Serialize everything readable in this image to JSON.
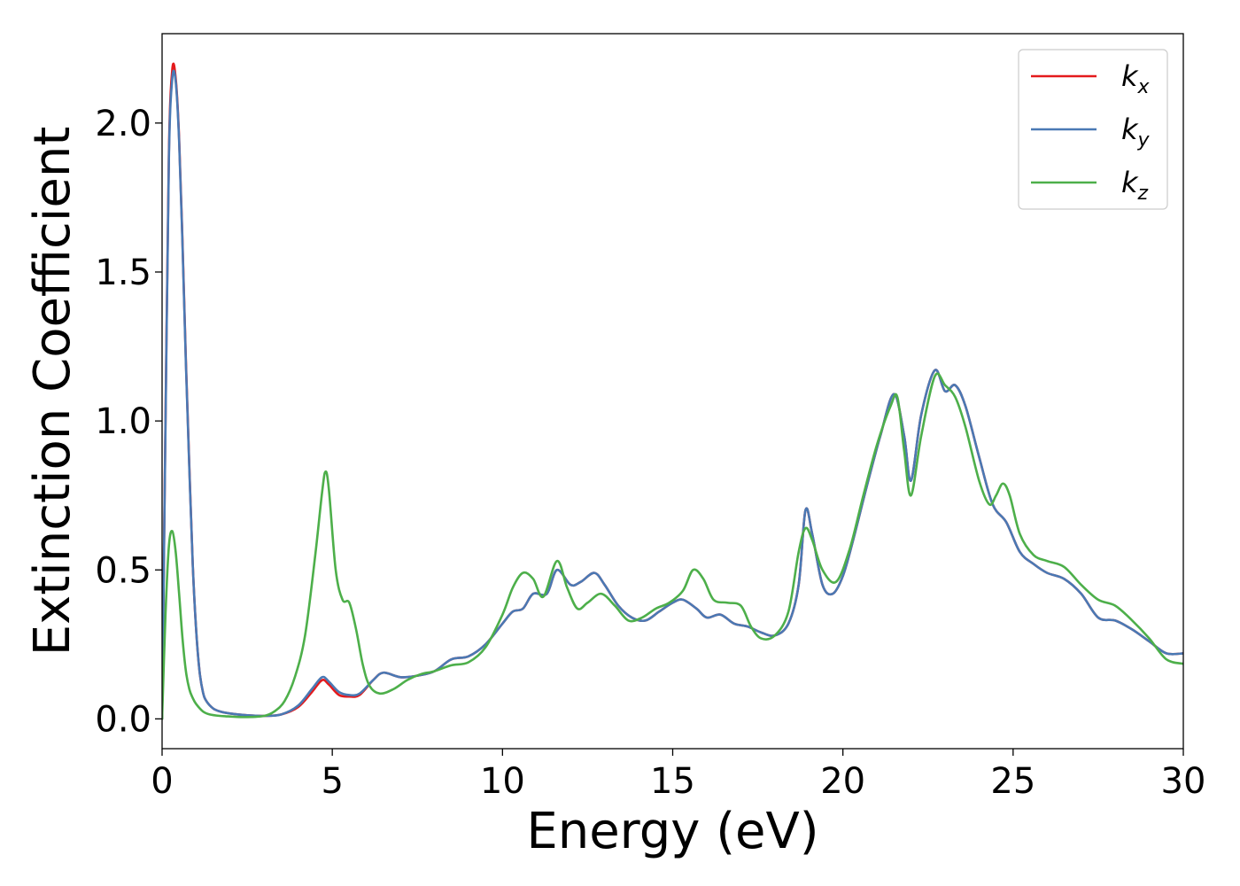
{
  "chart_data": {
    "type": "line",
    "title": "",
    "xlabel": "Energy (eV)",
    "ylabel": "Extinction Coefficient",
    "xlim": [
      0,
      30
    ],
    "ylim": [
      -0.1,
      2.3
    ],
    "xticks": [
      0,
      5,
      10,
      15,
      20,
      25,
      30
    ],
    "xtick_labels": [
      "0",
      "5",
      "10",
      "15",
      "20",
      "25",
      "30"
    ],
    "yticks": [
      0.0,
      0.5,
      1.0,
      1.5,
      2.0
    ],
    "ytick_labels": [
      "0.0",
      "0.5",
      "1.0",
      "1.5",
      "2.0"
    ],
    "grid": false,
    "legend_position": "top-right",
    "series": [
      {
        "name": "k",
        "subscript": "x",
        "color": "#e41a1c",
        "x": [
          0,
          0.1,
          0.2,
          0.3,
          0.4,
          0.5,
          0.6,
          0.7,
          0.8,
          0.9,
          1.0,
          1.1,
          1.2,
          1.3,
          1.5,
          1.7,
          2.0,
          2.5,
          3.0,
          3.5,
          4.0,
          4.4,
          4.7,
          4.9,
          5.2,
          5.5,
          5.8,
          6.2,
          6.5,
          7.0,
          7.5,
          8.0,
          8.5,
          9.0,
          9.5,
          10.0,
          10.3,
          10.6,
          10.9,
          11.3,
          11.6,
          12.0,
          12.3,
          12.7,
          13.0,
          13.4,
          13.8,
          14.2,
          14.6,
          15.0,
          15.3,
          15.7,
          16.0,
          16.4,
          16.8,
          17.2,
          17.6,
          18.0,
          18.4,
          18.7,
          18.9,
          19.1,
          19.4,
          19.7,
          20.0,
          20.3,
          20.7,
          21.1,
          21.5,
          21.8,
          22.0,
          22.3,
          22.7,
          23.0,
          23.3,
          23.6,
          24.0,
          24.4,
          24.8,
          25.2,
          25.6,
          26.0,
          26.5,
          27.0,
          27.5,
          28.0,
          28.5,
          29.0,
          29.5,
          30.0
        ],
        "y": [
          0.0,
          1.0,
          1.9,
          2.18,
          2.15,
          1.95,
          1.6,
          1.2,
          0.85,
          0.52,
          0.3,
          0.16,
          0.09,
          0.06,
          0.035,
          0.025,
          0.018,
          0.012,
          0.01,
          0.015,
          0.04,
          0.09,
          0.13,
          0.115,
          0.08,
          0.075,
          0.08,
          0.13,
          0.155,
          0.14,
          0.145,
          0.16,
          0.2,
          0.21,
          0.25,
          0.32,
          0.36,
          0.37,
          0.42,
          0.42,
          0.5,
          0.45,
          0.46,
          0.49,
          0.45,
          0.38,
          0.34,
          0.33,
          0.36,
          0.39,
          0.4,
          0.37,
          0.34,
          0.35,
          0.32,
          0.31,
          0.29,
          0.28,
          0.32,
          0.45,
          0.7,
          0.62,
          0.45,
          0.42,
          0.48,
          0.6,
          0.78,
          0.95,
          1.09,
          0.95,
          0.8,
          1.02,
          1.17,
          1.1,
          1.12,
          1.05,
          0.88,
          0.72,
          0.66,
          0.56,
          0.52,
          0.49,
          0.47,
          0.42,
          0.34,
          0.33,
          0.3,
          0.26,
          0.22,
          0.22
        ]
      },
      {
        "name": "k",
        "subscript": "y",
        "color": "#4a79b4",
        "x": [
          0,
          0.1,
          0.2,
          0.3,
          0.4,
          0.5,
          0.6,
          0.7,
          0.8,
          0.9,
          1.0,
          1.1,
          1.2,
          1.3,
          1.5,
          1.7,
          2.0,
          2.5,
          3.0,
          3.5,
          4.0,
          4.4,
          4.7,
          4.9,
          5.2,
          5.5,
          5.8,
          6.2,
          6.5,
          7.0,
          7.5,
          8.0,
          8.5,
          9.0,
          9.5,
          10.0,
          10.3,
          10.6,
          10.9,
          11.3,
          11.6,
          12.0,
          12.3,
          12.7,
          13.0,
          13.4,
          13.8,
          14.2,
          14.6,
          15.0,
          15.3,
          15.7,
          16.0,
          16.4,
          16.8,
          17.2,
          17.6,
          18.0,
          18.4,
          18.7,
          18.9,
          19.1,
          19.4,
          19.7,
          20.0,
          20.3,
          20.7,
          21.1,
          21.5,
          21.8,
          22.0,
          22.3,
          22.7,
          23.0,
          23.3,
          23.6,
          24.0,
          24.4,
          24.8,
          25.2,
          25.6,
          26.0,
          26.5,
          27.0,
          27.5,
          28.0,
          28.5,
          29.0,
          29.5,
          30.0
        ],
        "y": [
          0.0,
          0.98,
          1.88,
          2.15,
          2.14,
          1.94,
          1.59,
          1.19,
          0.84,
          0.52,
          0.3,
          0.16,
          0.09,
          0.06,
          0.035,
          0.025,
          0.018,
          0.012,
          0.01,
          0.015,
          0.045,
          0.1,
          0.14,
          0.125,
          0.09,
          0.08,
          0.085,
          0.13,
          0.155,
          0.14,
          0.145,
          0.16,
          0.2,
          0.21,
          0.25,
          0.32,
          0.36,
          0.37,
          0.42,
          0.42,
          0.5,
          0.45,
          0.46,
          0.49,
          0.45,
          0.38,
          0.34,
          0.33,
          0.36,
          0.39,
          0.4,
          0.37,
          0.34,
          0.35,
          0.32,
          0.31,
          0.29,
          0.28,
          0.32,
          0.45,
          0.7,
          0.62,
          0.45,
          0.42,
          0.48,
          0.6,
          0.78,
          0.95,
          1.09,
          0.95,
          0.8,
          1.02,
          1.17,
          1.1,
          1.12,
          1.05,
          0.88,
          0.72,
          0.66,
          0.56,
          0.52,
          0.49,
          0.47,
          0.42,
          0.34,
          0.33,
          0.3,
          0.26,
          0.22,
          0.22
        ]
      },
      {
        "name": "k",
        "subscript": "z",
        "color": "#4daf4a",
        "x": [
          0,
          0.1,
          0.2,
          0.3,
          0.4,
          0.5,
          0.6,
          0.7,
          0.8,
          0.9,
          1.0,
          1.2,
          1.4,
          1.7,
          2.0,
          2.5,
          3.0,
          3.3,
          3.6,
          3.9,
          4.2,
          4.5,
          4.7,
          4.8,
          4.9,
          5.1,
          5.3,
          5.5,
          5.7,
          5.9,
          6.1,
          6.4,
          6.8,
          7.2,
          7.6,
          8.0,
          8.5,
          9.0,
          9.5,
          10.0,
          10.3,
          10.6,
          10.9,
          11.2,
          11.6,
          11.9,
          12.2,
          12.5,
          12.9,
          13.3,
          13.7,
          14.1,
          14.5,
          14.9,
          15.3,
          15.6,
          15.9,
          16.2,
          16.6,
          17.0,
          17.3,
          17.6,
          18.0,
          18.4,
          18.7,
          18.9,
          19.1,
          19.4,
          19.8,
          20.2,
          20.6,
          21.0,
          21.4,
          21.6,
          21.8,
          22.0,
          22.3,
          22.7,
          23.0,
          23.3,
          23.6,
          24.0,
          24.3,
          24.5,
          24.7,
          24.9,
          25.2,
          25.6,
          26.0,
          26.5,
          27.0,
          27.5,
          28.0,
          28.5,
          29.0,
          29.5,
          30.0
        ],
        "y": [
          0.0,
          0.35,
          0.58,
          0.63,
          0.56,
          0.42,
          0.27,
          0.16,
          0.1,
          0.07,
          0.05,
          0.025,
          0.015,
          0.01,
          0.008,
          0.006,
          0.01,
          0.025,
          0.06,
          0.14,
          0.28,
          0.55,
          0.76,
          0.83,
          0.77,
          0.5,
          0.4,
          0.39,
          0.3,
          0.18,
          0.11,
          0.085,
          0.1,
          0.13,
          0.15,
          0.16,
          0.18,
          0.19,
          0.24,
          0.35,
          0.44,
          0.49,
          0.47,
          0.41,
          0.53,
          0.44,
          0.37,
          0.39,
          0.42,
          0.38,
          0.33,
          0.34,
          0.37,
          0.39,
          0.43,
          0.5,
          0.47,
          0.4,
          0.39,
          0.38,
          0.31,
          0.27,
          0.28,
          0.36,
          0.56,
          0.64,
          0.6,
          0.5,
          0.46,
          0.57,
          0.75,
          0.92,
          1.05,
          1.08,
          0.9,
          0.75,
          0.95,
          1.15,
          1.12,
          1.08,
          0.98,
          0.8,
          0.72,
          0.75,
          0.79,
          0.75,
          0.62,
          0.55,
          0.53,
          0.51,
          0.45,
          0.4,
          0.38,
          0.33,
          0.27,
          0.2,
          0.185
        ]
      }
    ]
  }
}
